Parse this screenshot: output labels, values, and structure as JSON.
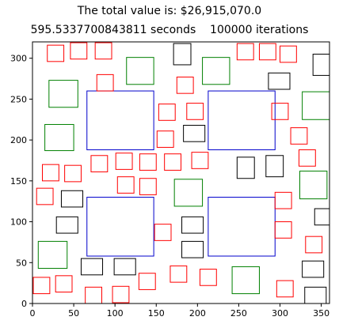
{
  "title_line1": "The total value is: $26,915,070.0",
  "title_line2": "595.5337700843811 seconds    100000 iterations",
  "chart_data": {
    "type": "rectangles",
    "xlim": [
      0,
      360
    ],
    "ylim": [
      0,
      320
    ],
    "xticks": [
      0,
      50,
      100,
      150,
      200,
      250,
      300,
      350
    ],
    "yticks": [
      0,
      50,
      100,
      150,
      200,
      250,
      300
    ],
    "grid": false,
    "colors": {
      "red": "#ff0000",
      "black": "#000000",
      "green": "#008000",
      "blue": "#0000cc"
    },
    "rects": [
      {
        "c": "blue",
        "x": 66,
        "y": 188,
        "w": 81,
        "h": 72
      },
      {
        "c": "blue",
        "x": 213,
        "y": 188,
        "w": 81,
        "h": 72
      },
      {
        "c": "blue",
        "x": 66,
        "y": 58,
        "w": 81,
        "h": 72
      },
      {
        "c": "blue",
        "x": 213,
        "y": 58,
        "w": 81,
        "h": 72
      },
      {
        "c": "green",
        "x": 114,
        "y": 268,
        "w": 33,
        "h": 33
      },
      {
        "c": "green",
        "x": 206,
        "y": 268,
        "w": 33,
        "h": 33
      },
      {
        "c": "green",
        "x": 20,
        "y": 240,
        "w": 35,
        "h": 33
      },
      {
        "c": "green",
        "x": 327,
        "y": 225,
        "w": 33,
        "h": 34
      },
      {
        "c": "green",
        "x": 15,
        "y": 187,
        "w": 35,
        "h": 32
      },
      {
        "c": "green",
        "x": 324,
        "y": 128,
        "w": 33,
        "h": 34
      },
      {
        "c": "green",
        "x": 172,
        "y": 119,
        "w": 34,
        "h": 33
      },
      {
        "c": "green",
        "x": 7,
        "y": 43,
        "w": 35,
        "h": 33
      },
      {
        "c": "green",
        "x": 242,
        "y": 12,
        "w": 33,
        "h": 33
      },
      {
        "c": "black",
        "x": 171,
        "y": 292,
        "w": 21,
        "h": 26
      },
      {
        "c": "black",
        "x": 340,
        "y": 279,
        "w": 21,
        "h": 26
      },
      {
        "c": "black",
        "x": 286,
        "y": 262,
        "w": 26,
        "h": 20
      },
      {
        "c": "black",
        "x": 183,
        "y": 198,
        "w": 26,
        "h": 20
      },
      {
        "c": "black",
        "x": 248,
        "y": 153,
        "w": 21,
        "h": 26
      },
      {
        "c": "black",
        "x": 283,
        "y": 155,
        "w": 21,
        "h": 26
      },
      {
        "c": "black",
        "x": 35,
        "y": 118,
        "w": 26,
        "h": 20
      },
      {
        "c": "black",
        "x": 342,
        "y": 96,
        "w": 26,
        "h": 20
      },
      {
        "c": "black",
        "x": 29,
        "y": 86,
        "w": 26,
        "h": 20
      },
      {
        "c": "black",
        "x": 181,
        "y": 86,
        "w": 26,
        "h": 20
      },
      {
        "c": "black",
        "x": 181,
        "y": 56,
        "w": 26,
        "h": 20
      },
      {
        "c": "black",
        "x": 59,
        "y": 35,
        "w": 26,
        "h": 20
      },
      {
        "c": "black",
        "x": 99,
        "y": 35,
        "w": 26,
        "h": 20
      },
      {
        "c": "black",
        "x": 327,
        "y": 32,
        "w": 26,
        "h": 20
      },
      {
        "c": "black",
        "x": 330,
        "y": 0,
        "w": 26,
        "h": 20
      },
      {
        "c": "red",
        "x": 18,
        "y": 296,
        "w": 20,
        "h": 20
      },
      {
        "c": "red",
        "x": 46,
        "y": 299,
        "w": 20,
        "h": 20
      },
      {
        "c": "red",
        "x": 76,
        "y": 299,
        "w": 20,
        "h": 20
      },
      {
        "c": "red",
        "x": 248,
        "y": 298,
        "w": 20,
        "h": 20
      },
      {
        "c": "red",
        "x": 275,
        "y": 298,
        "w": 20,
        "h": 20
      },
      {
        "c": "red",
        "x": 300,
        "y": 295,
        "w": 20,
        "h": 20
      },
      {
        "c": "red",
        "x": 78,
        "y": 260,
        "w": 20,
        "h": 20
      },
      {
        "c": "red",
        "x": 175,
        "y": 257,
        "w": 20,
        "h": 20
      },
      {
        "c": "red",
        "x": 153,
        "y": 224,
        "w": 20,
        "h": 20
      },
      {
        "c": "red",
        "x": 187,
        "y": 225,
        "w": 20,
        "h": 20
      },
      {
        "c": "red",
        "x": 290,
        "y": 225,
        "w": 20,
        "h": 20
      },
      {
        "c": "red",
        "x": 151,
        "y": 191,
        "w": 20,
        "h": 20
      },
      {
        "c": "red",
        "x": 313,
        "y": 195,
        "w": 20,
        "h": 20
      },
      {
        "c": "red",
        "x": 323,
        "y": 168,
        "w": 20,
        "h": 20
      },
      {
        "c": "red",
        "x": 71,
        "y": 161,
        "w": 20,
        "h": 20
      },
      {
        "c": "red",
        "x": 101,
        "y": 164,
        "w": 20,
        "h": 20
      },
      {
        "c": "red",
        "x": 130,
        "y": 163,
        "w": 20,
        "h": 20
      },
      {
        "c": "red",
        "x": 160,
        "y": 163,
        "w": 20,
        "h": 20
      },
      {
        "c": "red",
        "x": 193,
        "y": 165,
        "w": 20,
        "h": 20
      },
      {
        "c": "red",
        "x": 12,
        "y": 150,
        "w": 20,
        "h": 20
      },
      {
        "c": "red",
        "x": 39,
        "y": 149,
        "w": 20,
        "h": 20
      },
      {
        "c": "red",
        "x": 103,
        "y": 135,
        "w": 20,
        "h": 20
      },
      {
        "c": "red",
        "x": 130,
        "y": 133,
        "w": 20,
        "h": 20
      },
      {
        "c": "red",
        "x": 5,
        "y": 121,
        "w": 20,
        "h": 20
      },
      {
        "c": "red",
        "x": 294,
        "y": 116,
        "w": 20,
        "h": 20
      },
      {
        "c": "red",
        "x": 294,
        "y": 80,
        "w": 20,
        "h": 20
      },
      {
        "c": "red",
        "x": 148,
        "y": 77,
        "w": 20,
        "h": 20
      },
      {
        "c": "red",
        "x": 331,
        "y": 62,
        "w": 20,
        "h": 20
      },
      {
        "c": "red",
        "x": 167,
        "y": 26,
        "w": 20,
        "h": 20
      },
      {
        "c": "red",
        "x": 203,
        "y": 22,
        "w": 20,
        "h": 20
      },
      {
        "c": "red",
        "x": 1,
        "y": 12,
        "w": 20,
        "h": 20
      },
      {
        "c": "red",
        "x": 28,
        "y": 14,
        "w": 20,
        "h": 20
      },
      {
        "c": "red",
        "x": 129,
        "y": 17,
        "w": 20,
        "h": 20
      },
      {
        "c": "red",
        "x": 296,
        "y": 8,
        "w": 20,
        "h": 20
      },
      {
        "c": "red",
        "x": 64,
        "y": 0,
        "w": 20,
        "h": 20
      },
      {
        "c": "red",
        "x": 97,
        "y": 1,
        "w": 20,
        "h": 20
      }
    ]
  }
}
